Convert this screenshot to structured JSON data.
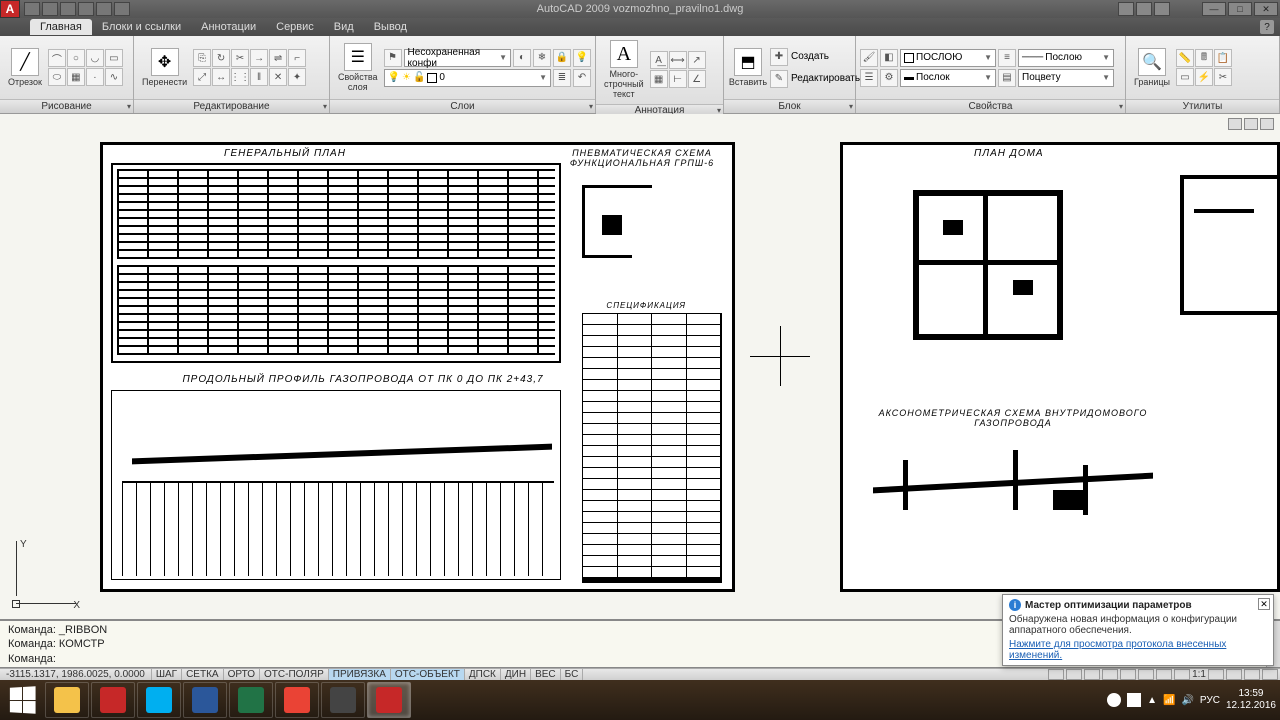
{
  "title": "AutoCAD 2009 vozmozhno_pravilno1.dwg",
  "menu": {
    "items": [
      "Главная",
      "Блоки и ссылки",
      "Аннотации",
      "Сервис",
      "Вид",
      "Вывод"
    ],
    "active": 0
  },
  "ribbon": {
    "panels": {
      "draw": {
        "title": "Рисование",
        "big": {
          "label": "Отрезок"
        }
      },
      "edit": {
        "title": "Редактирование",
        "big": {
          "label": "Перенести"
        }
      },
      "layers": {
        "title": "Слои",
        "big": {
          "label": "Свойства\nслоя"
        },
        "unsaved_combo": "Несохраненная конфи",
        "layer_combo": "0"
      },
      "annot": {
        "title": "Аннотация",
        "big": {
          "label": "Много-\nстрочный\nтекст"
        }
      },
      "block": {
        "title": "Блок",
        "big": {
          "label": "Вставить"
        },
        "create": "Создать",
        "edit": "Редактировать"
      },
      "props": {
        "title": "Свойства",
        "color": "ПОСЛОЮ",
        "ltype": "Послою",
        "lweight": "Послок",
        "plot": "Поцвету"
      },
      "utils": {
        "title": "Утилиты",
        "big": {
          "label": "Границы"
        }
      }
    }
  },
  "drawing": {
    "sheet1": {
      "title_top": "ГЕНЕРАЛЬНЫЙ ПЛАН",
      "title_mid": "ПРОДОЛЬНЫЙ ПРОФИЛЬ ГАЗОПРОВОДА ОТ ПК 0 ДО ПК 2+43,7",
      "title_scheme": "ПНЕВМАТИЧЕСКАЯ СХЕМА\nФУНКЦИОНАЛЬНАЯ ГРПШ-6",
      "title_spec": "СПЕЦИФИКАЦИЯ"
    },
    "sheet2": {
      "title_top": "ПЛАН ДОМА",
      "title_axo": "АКСОНОМЕТРИЧЕСКАЯ СХЕМА ВНУТРИДОМОВОГО ГАЗОПРОВОДА"
    },
    "ucs": {
      "x": "X",
      "y": "Y"
    }
  },
  "cmd": {
    "line1": "Команда: _RIBBON",
    "line2": "Команда: КОМСТР",
    "prompt": "Команда:"
  },
  "status": {
    "coords": "-3115.1317, 1986.0025, 0.0000",
    "toggles": [
      "ШАГ",
      "СЕТКА",
      "ОРТО",
      "ОТС-ПОЛЯР",
      "ПРИВЯЗКА",
      "ОТС-ОБЪЕКТ",
      "ДПСК",
      "ДИН",
      "ВЕС",
      "БС"
    ],
    "toggles_on": [
      4,
      5
    ],
    "scale": "1:1"
  },
  "balloon": {
    "title": "Мастер оптимизации параметров",
    "body": "Обнаружена новая информация о конфигурации аппаратного обеспечения.",
    "link": "Нажмите для просмотра протокола внесенных изменений."
  },
  "taskbar": {
    "apps": [
      {
        "name": "explorer",
        "color": "#f4c24a"
      },
      {
        "name": "opera",
        "color": "#c62828"
      },
      {
        "name": "skype",
        "color": "#00aff0"
      },
      {
        "name": "word",
        "color": "#2b579a"
      },
      {
        "name": "excel",
        "color": "#217346"
      },
      {
        "name": "chrome",
        "color": "#ea4335"
      },
      {
        "name": "photoref",
        "color": "#444"
      },
      {
        "name": "autocad",
        "color": "#c62828"
      }
    ],
    "lang": "РУС",
    "time": "13:59",
    "date": "12.12.2016"
  },
  "colors": {
    "balloon_link": "#1a5fb4",
    "toggle_on": "#b8d8f0"
  }
}
